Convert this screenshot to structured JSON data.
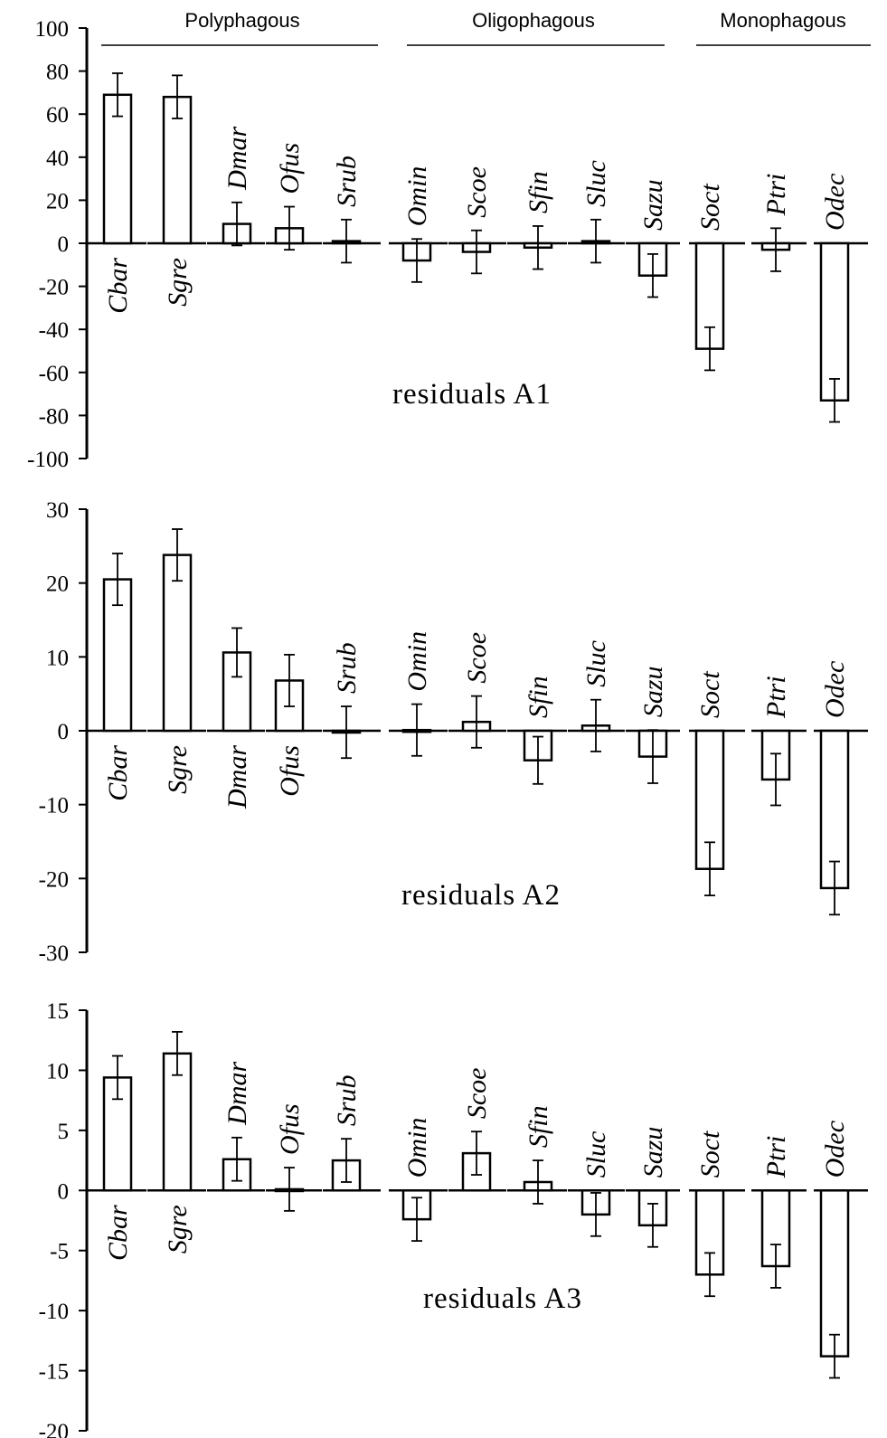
{
  "groups": [
    {
      "name": "Polyphagous",
      "members": [
        "Cbar",
        "Sgre",
        "Dmar",
        "Ofus",
        "Srub"
      ]
    },
    {
      "name": "Oligophagous",
      "members": [
        "Omin",
        "Scoe",
        "Sfin",
        "Sluc",
        "Sazu"
      ]
    },
    {
      "name": "Monophagous",
      "members": [
        "Soct",
        "Ptri",
        "Odec"
      ]
    }
  ],
  "chart_data": [
    {
      "type": "bar",
      "title": "residuals A1",
      "categories": [
        "Cbar",
        "Sgre",
        "Dmar",
        "Ofus",
        "Srub",
        "Omin",
        "Scoe",
        "Sfin",
        "Sluc",
        "Sazu",
        "Soct",
        "Ptri",
        "Odec"
      ],
      "values": [
        69,
        68,
        9,
        7,
        1,
        -8,
        -4,
        -2,
        1,
        -15,
        -49,
        -3,
        -73
      ],
      "errors": [
        10,
        10,
        10,
        10,
        10,
        10,
        10,
        10,
        10,
        10,
        10,
        10,
        10
      ],
      "label_side": [
        "below",
        "below",
        "above",
        "above",
        "above",
        "above",
        "above",
        "above",
        "above",
        "above",
        "above",
        "above",
        "above"
      ],
      "ylim": [
        -100,
        100
      ],
      "yticks": [
        100,
        80,
        60,
        40,
        20,
        0,
        -20,
        -40,
        -60,
        -80,
        -100
      ],
      "ytick_labels": [
        "100",
        "80",
        "60",
        "40",
        "20",
        "0",
        "-20",
        "-40",
        "-60",
        "-80",
        "-100"
      ],
      "error_bars": true,
      "grid": false
    },
    {
      "type": "bar",
      "title": "residuals A2",
      "categories": [
        "Cbar",
        "Sgre",
        "Dmar",
        "Ofus",
        "Srub",
        "Omin",
        "Scoe",
        "Sfin",
        "Sluc",
        "Sazu",
        "Soct",
        "Ptri",
        "Odec"
      ],
      "values": [
        20.5,
        23.8,
        10.6,
        6.8,
        -0.2,
        0.1,
        1.2,
        -4,
        0.7,
        -3.5,
        -18.7,
        -6.6,
        -21.3
      ],
      "errors": [
        3.5,
        3.5,
        3.3,
        3.5,
        3.5,
        3.5,
        3.5,
        3.2,
        3.5,
        3.6,
        3.6,
        3.5,
        3.6
      ],
      "label_side": [
        "below",
        "below",
        "below",
        "below",
        "above",
        "above",
        "above",
        "above",
        "above",
        "above",
        "above",
        "above",
        "above"
      ],
      "ylim": [
        -30,
        30
      ],
      "yticks": [
        30,
        20,
        10,
        0,
        -10,
        -20,
        -30
      ],
      "ytick_labels": [
        "30",
        "20",
        "10",
        "0",
        "-10",
        "-20",
        "-30"
      ],
      "error_bars": true,
      "grid": false
    },
    {
      "type": "bar",
      "title": "residuals A3",
      "categories": [
        "Cbar",
        "Sgre",
        "Dmar",
        "Ofus",
        "Srub",
        "Omin",
        "Scoe",
        "Sfin",
        "Sluc",
        "Sazu",
        "Soct",
        "Ptri",
        "Odec"
      ],
      "values": [
        9.4,
        11.4,
        2.6,
        0.1,
        2.5,
        -2.4,
        3.1,
        0.7,
        -2,
        -2.9,
        -7,
        -6.3,
        -13.8
      ],
      "errors": [
        1.8,
        1.8,
        1.8,
        1.8,
        1.8,
        1.8,
        1.8,
        1.8,
        1.8,
        1.8,
        1.8,
        1.8,
        1.8
      ],
      "label_side": [
        "below",
        "below",
        "above",
        "above",
        "above",
        "above",
        "above",
        "above",
        "above",
        "above",
        "above",
        "above",
        "above"
      ],
      "ylim": [
        -20,
        15
      ],
      "yticks": [
        15,
        10,
        5,
        0,
        -5,
        -10,
        -15,
        -20
      ],
      "ytick_labels": [
        "15",
        "10",
        "5",
        "0",
        "-5",
        "-10",
        "-15",
        "-20"
      ],
      "error_bars": true,
      "grid": false
    }
  ]
}
